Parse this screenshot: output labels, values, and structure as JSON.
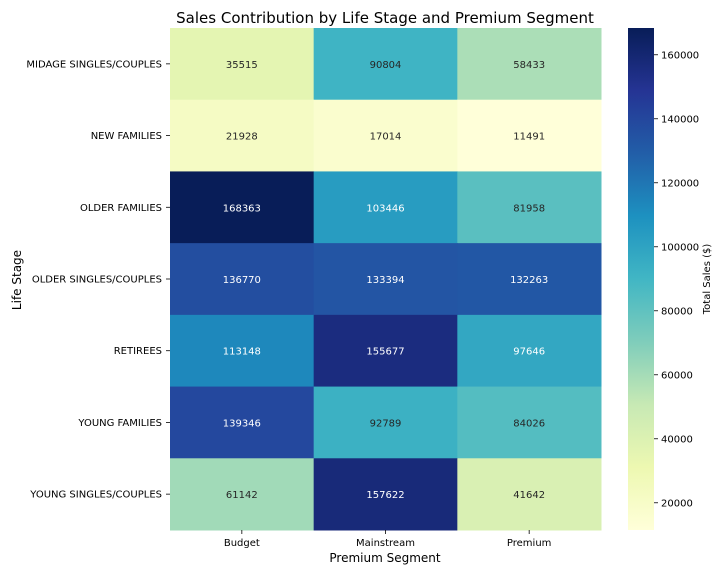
{
  "chart_data": {
    "type": "heatmap",
    "title": "Sales Contribution by Life Stage and Premium Segment",
    "xlabel": "Premium Segment",
    "ylabel": "Life Stage",
    "x_categories": [
      "Budget",
      "Mainstream",
      "Premium"
    ],
    "y_categories": [
      "MIDAGE SINGLES/COUPLES",
      "NEW FAMILIES",
      "OLDER FAMILIES",
      "OLDER SINGLES/COUPLES",
      "RETIREES",
      "YOUNG FAMILIES",
      "YOUNG SINGLES/COUPLES"
    ],
    "values": [
      [
        35515,
        90804,
        58433
      ],
      [
        21928,
        17014,
        11491
      ],
      [
        168363,
        103446,
        81958
      ],
      [
        136770,
        133394,
        132263
      ],
      [
        113148,
        155677,
        97646
      ],
      [
        139346,
        92789,
        84026
      ],
      [
        61142,
        157622,
        41642
      ]
    ],
    "colorbar": {
      "label": "Total Sales ($)",
      "range": [
        11491,
        168363
      ],
      "ticks": [
        20000,
        40000,
        60000,
        80000,
        100000,
        120000,
        140000,
        160000
      ],
      "colormap": "YlGnBu"
    }
  }
}
